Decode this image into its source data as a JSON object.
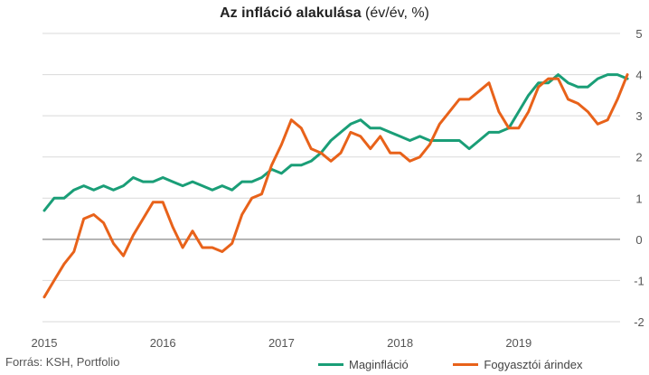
{
  "title_bold": "Az infláció alakulása",
  "title_rest": " (év/év, %)",
  "source": "Forrás: KSH, Portfolio",
  "colors": {
    "series1": "#1a9e77",
    "series2": "#e8621a",
    "grid": "#d9d9d9",
    "zero": "#888888",
    "text": "#555555"
  },
  "chart_data": {
    "type": "line",
    "x_ticks": [
      "2015",
      "2016",
      "2017",
      "2018",
      "2019"
    ],
    "y_ticks": [
      "5",
      "4",
      "3",
      "2",
      "1",
      "0",
      "-1",
      "-2"
    ],
    "ylim": [
      -2,
      5
    ],
    "y_axis_position": "right",
    "grid": true,
    "legend_position": "bottom",
    "x_start": "2015-01",
    "series": [
      {
        "name": "Maginfláció",
        "color": "#1a9e77",
        "values": [
          0.7,
          1.0,
          1.0,
          1.2,
          1.3,
          1.2,
          1.3,
          1.2,
          1.3,
          1.5,
          1.4,
          1.4,
          1.5,
          1.4,
          1.3,
          1.4,
          1.3,
          1.2,
          1.3,
          1.2,
          1.4,
          1.4,
          1.5,
          1.7,
          1.6,
          1.8,
          1.8,
          1.9,
          2.1,
          2.4,
          2.6,
          2.8,
          2.9,
          2.7,
          2.7,
          2.6,
          2.5,
          2.4,
          2.5,
          2.4,
          2.4,
          2.4,
          2.4,
          2.2,
          2.4,
          2.6,
          2.6,
          2.7,
          3.1,
          3.5,
          3.8,
          3.8,
          4.0,
          3.8,
          3.7,
          3.7,
          3.9,
          4.0,
          4.0,
          3.9
        ]
      },
      {
        "name": "Fogyasztói árindex",
        "color": "#e8621a",
        "values": [
          -1.4,
          -1.0,
          -0.6,
          -0.3,
          0.5,
          0.6,
          0.4,
          -0.1,
          -0.4,
          0.1,
          0.5,
          0.9,
          0.9,
          0.3,
          -0.2,
          0.2,
          -0.2,
          -0.2,
          -0.3,
          -0.1,
          0.6,
          1.0,
          1.1,
          1.8,
          2.3,
          2.9,
          2.7,
          2.2,
          2.1,
          1.9,
          2.1,
          2.6,
          2.5,
          2.2,
          2.5,
          2.1,
          2.1,
          1.9,
          2.0,
          2.3,
          2.8,
          3.1,
          3.4,
          3.4,
          3.6,
          3.8,
          3.1,
          2.7,
          2.7,
          3.1,
          3.7,
          3.9,
          3.9,
          3.4,
          3.3,
          3.1,
          2.8,
          2.9,
          3.4,
          4.0
        ]
      }
    ]
  }
}
